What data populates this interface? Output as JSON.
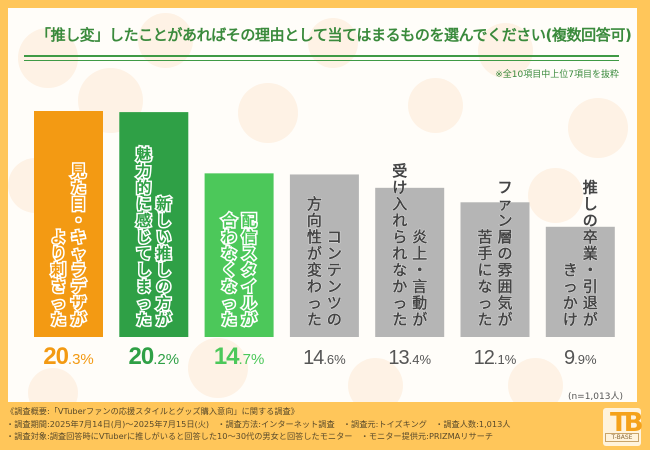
{
  "chart_data": {
    "type": "bar",
    "title": "「推し変」したことがあればその理由として当てはまるものを選んでください(複数回答可)",
    "subtitle": "※全10項目中上位7項目を抜粋",
    "xlabel": "",
    "ylabel": "",
    "ylim": [
      0,
      20.3
    ],
    "grid": false,
    "legend": "none",
    "categories": [
      "見た目・キャラデザがより刺さった",
      "魅力的に感じてしまった新しい推しの方が",
      "配信スタイルが合わなくなった",
      "コンテンツの方向性が変わった",
      "受け入れられなかった炎上・言動が",
      "ファン層の雰囲気が苦手になった",
      "推しの卒業・引退がきっかけ"
    ],
    "bar_text_lines": [
      [
        "見た目・キャラデザが",
        "より刺さった"
      ],
      [
        "新しい推しの方が",
        "魅力的に感じてしまった"
      ],
      [
        "配信スタイルが",
        "合わなくなった"
      ],
      [
        "コンテンツの",
        "方向性が変わった"
      ],
      [
        "炎上・言動が",
        "受け入れられなかった"
      ],
      [
        "ファン層の雰囲気が",
        "苦手になった"
      ],
      [
        "推しの卒業・引退が",
        "きっかけ"
      ]
    ],
    "values": [
      20.3,
      20.2,
      14.7,
      14.6,
      13.4,
      12.1,
      9.9
    ],
    "value_labels": [
      {
        "int": "20",
        "dec": ".3",
        "unit": "%"
      },
      {
        "int": "20",
        "dec": ".2",
        "unit": "%"
      },
      {
        "int": "14",
        "dec": ".7",
        "unit": "%"
      },
      {
        "int": "14",
        "dec": ".6",
        "unit": "%"
      },
      {
        "int": "13",
        "dec": ".4",
        "unit": "%"
      },
      {
        "int": "12",
        "dec": ".1",
        "unit": "%"
      },
      {
        "int": "9",
        "dec": ".9",
        "unit": "%"
      }
    ],
    "bar_colors": [
      "#F39A13",
      "#2FA046",
      "#4CC85A",
      "#B5B5B5",
      "#B5B5B5",
      "#B5B5B5",
      "#B5B5B5"
    ],
    "label_colors": [
      "#F39A13",
      "#2FA046",
      "#4CC85A",
      "#555555",
      "#555555",
      "#555555",
      "#555555"
    ],
    "sample_size": "(n=1,013人)"
  },
  "footer": {
    "line1": "《調査概要:「VTuberファンの応援スタイルとグッズ購入意向」に関する調査》",
    "line2": "・調査期間:2025年7月14日(月)〜2025年7月15日(火)　・調査方法:インターネット調査　・調査元:トイズキング　・調査人数:1,013人",
    "line3": "・調査対象:調査回答時にVTuberに推しがいると回答した10〜30代の男女と回答したモニター　・モニター提供元:PRIZMAリサーチ"
  },
  "logo": {
    "mark": "TB",
    "text": "T-BASE"
  }
}
